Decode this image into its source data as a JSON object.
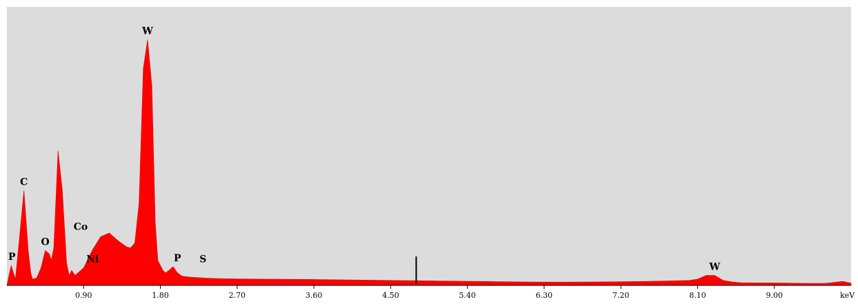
{
  "chart_data": {
    "type": "area",
    "title": "",
    "xlabel": "",
    "ylabel": "",
    "x_unit": "keV",
    "xlim": [
      0,
      9.9
    ],
    "ylim": [
      0,
      100
    ],
    "x_ticks": [
      0.9,
      1.8,
      2.7,
      3.6,
      4.5,
      5.4,
      6.3,
      7.2,
      8.1,
      9.0
    ],
    "x_tick_labels": [
      "0.90",
      "1.80",
      "2.70",
      "3.60",
      "4.50",
      "5.40",
      "6.30",
      "7.20",
      "8.10",
      "9.00"
    ],
    "grid": false,
    "legend": "none",
    "colors": {
      "spectrum": "#ff0000",
      "background": "#dcdcdc"
    },
    "cursor_x": 4.8,
    "series": [
      {
        "x": [
          0.0,
          0.05,
          0.1,
          0.15,
          0.2,
          0.25,
          0.28,
          0.3,
          0.35,
          0.4,
          0.45,
          0.5,
          0.52,
          0.55,
          0.6,
          0.65,
          0.7,
          0.73,
          0.76,
          0.8,
          0.85,
          0.9,
          0.95,
          1.0,
          1.1,
          1.2,
          1.3,
          1.4,
          1.45,
          1.5,
          1.55,
          1.6,
          1.65,
          1.7,
          1.74,
          1.77,
          1.8,
          1.83,
          1.86,
          1.9,
          1.95,
          2.0,
          2.05,
          2.1,
          2.15,
          2.2,
          2.25,
          2.3,
          2.35,
          2.4,
          2.5,
          2.7,
          3.0,
          3.5,
          4.0,
          4.5,
          5.0,
          5.5,
          6.0,
          6.5,
          7.0,
          7.5,
          8.0,
          8.1,
          8.2,
          8.3,
          8.35,
          8.4,
          8.5,
          8.6,
          8.8,
          9.0,
          9.2,
          9.4,
          9.6,
          9.7,
          9.8,
          9.9
        ],
        "y": [
          0.0,
          8.0,
          2.5,
          20.0,
          38.0,
          14.0,
          5.0,
          2.5,
          3.0,
          7.0,
          14.0,
          12.5,
          10.0,
          15.0,
          54.0,
          38.0,
          9.0,
          4.0,
          6.0,
          4.0,
          5.5,
          7.0,
          10.5,
          14.0,
          19.5,
          21.0,
          18.0,
          15.5,
          15.0,
          17.0,
          33.0,
          87.0,
          98.5,
          80.0,
          25.0,
          10.0,
          8.0,
          6.0,
          5.0,
          6.0,
          7.5,
          5.0,
          3.8,
          3.5,
          3.3,
          3.2,
          3.1,
          3.0,
          2.9,
          2.8,
          2.7,
          2.6,
          2.5,
          2.4,
          2.2,
          2.0,
          1.8,
          1.6,
          1.4,
          1.3,
          1.4,
          1.6,
          2.0,
          2.5,
          4.0,
          4.0,
          3.0,
          2.0,
          1.4,
          1.1,
          1.0,
          1.0,
          0.9,
          0.8,
          0.8,
          1.2,
          1.6,
          0.9
        ]
      }
    ],
    "annotations": [
      {
        "text": "P",
        "x": 0.05,
        "y": 8.0
      },
      {
        "text": "C",
        "x": 0.2,
        "y": 38.0
      },
      {
        "text": "O",
        "x": 0.45,
        "y": 14.0
      },
      {
        "text": "Co",
        "x": 0.75,
        "y": 20.0
      },
      {
        "text": "Ni",
        "x": 0.9,
        "y": 7.0
      },
      {
        "text": "W",
        "x": 1.65,
        "y": 98.5
      },
      {
        "text": "P",
        "x": 2.0,
        "y": 7.5
      },
      {
        "text": "S",
        "x": 2.3,
        "y": 7.0
      },
      {
        "text": "W",
        "x": 8.3,
        "y": 4.0
      }
    ]
  }
}
